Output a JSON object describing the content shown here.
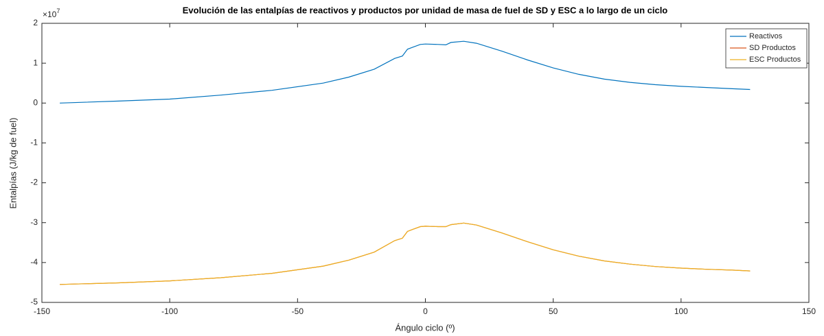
{
  "chart_data": {
    "type": "line",
    "title": "Evolución de las entalpías de reactivos y productos por unidad de masa de fuel de SD y ESC a lo largo de un ciclo",
    "xlabel": "Ángulo ciclo (º)",
    "ylabel": "Entalpías (J/kg de fuel)",
    "y_exponent": {
      "base": "×10",
      "power": "7"
    },
    "x": [
      -143,
      -120,
      -100,
      -80,
      -60,
      -40,
      -30,
      -20,
      -12,
      -9,
      -7,
      -5,
      -2,
      0,
      5,
      8,
      10,
      15,
      20,
      30,
      40,
      50,
      60,
      70,
      80,
      90,
      100,
      110,
      120,
      127
    ],
    "series": [
      {
        "name": "Reactivos",
        "color": "#0072bd",
        "values": [
          0,
          0.05,
          0.1,
          0.2,
          0.32,
          0.5,
          0.65,
          0.85,
          1.12,
          1.18,
          1.35,
          1.4,
          1.47,
          1.48,
          1.47,
          1.46,
          1.52,
          1.55,
          1.5,
          1.3,
          1.08,
          0.88,
          0.72,
          0.6,
          0.52,
          0.46,
          0.42,
          0.39,
          0.36,
          0.34
        ]
      },
      {
        "name": "SD Productos",
        "color": "#d95319",
        "values": [
          -4.55,
          -4.51,
          -4.46,
          -4.38,
          -4.27,
          -4.09,
          -3.94,
          -3.74,
          -3.45,
          -3.39,
          -3.22,
          -3.17,
          -3.1,
          -3.09,
          -3.1,
          -3.1,
          -3.05,
          -3.01,
          -3.06,
          -3.26,
          -3.48,
          -3.68,
          -3.84,
          -3.96,
          -4.04,
          -4.1,
          -4.14,
          -4.17,
          -4.19,
          -4.21
        ]
      },
      {
        "name": "ESC Productos",
        "color": "#edb120",
        "values": [
          -4.55,
          -4.51,
          -4.46,
          -4.38,
          -4.27,
          -4.09,
          -3.94,
          -3.74,
          -3.45,
          -3.39,
          -3.22,
          -3.17,
          -3.1,
          -3.09,
          -3.1,
          -3.1,
          -3.05,
          -3.01,
          -3.06,
          -3.26,
          -3.48,
          -3.68,
          -3.84,
          -3.96,
          -4.04,
          -4.1,
          -4.14,
          -4.17,
          -4.19,
          -4.21
        ]
      }
    ],
    "xlim": [
      -150,
      150
    ],
    "xticks": [
      -150,
      -100,
      -50,
      0,
      50,
      100,
      150
    ],
    "ylim": [
      -5,
      2
    ],
    "yticks": [
      -5,
      -4,
      -3,
      -2,
      -1,
      0,
      1,
      2
    ],
    "grid": false,
    "legend": "upper right"
  }
}
